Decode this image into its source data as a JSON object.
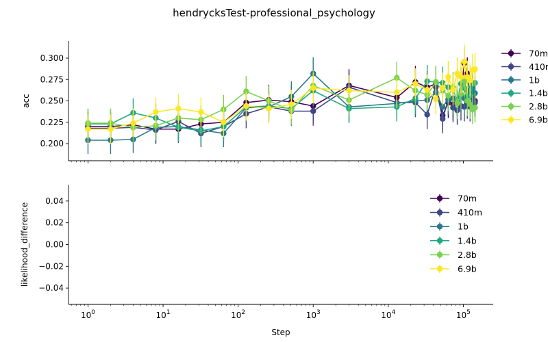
{
  "figure_title": "hendrycksTest-professional_psychology",
  "chart_data": [
    {
      "type": "line",
      "title": "",
      "xlabel": "",
      "ylabel": "acc",
      "xscale": "log",
      "xlim": [
        0.55,
        250000
      ],
      "ylim": [
        0.18,
        0.32
      ],
      "yticks": [
        0.2,
        0.225,
        0.25,
        0.275,
        0.3
      ],
      "ytick_labels": [
        "0.200",
        "0.225",
        "0.250",
        "0.275",
        "0.300"
      ],
      "xticks": [
        1,
        10,
        100,
        1000,
        10000,
        100000
      ],
      "xtick_labels": [
        "10^0",
        "10^1",
        "10^2",
        "10^3",
        "10^4",
        "10^5"
      ],
      "legend_position": "right, outside plot",
      "error_bars": true,
      "x": [
        1,
        2,
        4,
        8,
        16,
        32,
        64,
        128,
        256,
        512,
        1000,
        3000,
        13000,
        23000,
        33000,
        43000,
        53000,
        63000,
        73000,
        83000,
        93000,
        103000,
        113000,
        123000,
        133000,
        143000
      ],
      "series": [
        {
          "name": "70m",
          "color": "#440154",
          "values": [
            0.22,
            0.22,
            0.222,
            0.217,
            0.217,
            0.223,
            0.225,
            0.248,
            0.251,
            0.249,
            0.244,
            0.268,
            0.254,
            0.272,
            0.266,
            0.27,
            0.233,
            0.248,
            0.246,
            0.25,
            0.257,
            0.294,
            0.282,
            0.256,
            0.269,
            0.25
          ],
          "errors": [
            0.017,
            0.017,
            0.017,
            0.017,
            0.016,
            0.016,
            0.016,
            0.017,
            0.018,
            0.018,
            0.018,
            0.019,
            0.019,
            0.019,
            0.019,
            0.019,
            0.018,
            0.018,
            0.018,
            0.018,
            0.018,
            0.019,
            0.019,
            0.018,
            0.019,
            0.018
          ]
        },
        {
          "name": "410m",
          "color": "#414487",
          "values": [
            0.218,
            0.218,
            0.219,
            0.216,
            0.226,
            0.212,
            0.22,
            0.235,
            0.243,
            0.238,
            0.238,
            0.266,
            0.248,
            0.248,
            0.234,
            0.266,
            0.229,
            0.251,
            0.242,
            0.239,
            0.244,
            0.243,
            0.246,
            0.243,
            0.254,
            0.248
          ],
          "errors": [
            0.016,
            0.016,
            0.016,
            0.016,
            0.017,
            0.016,
            0.016,
            0.017,
            0.017,
            0.017,
            0.017,
            0.018,
            0.017,
            0.017,
            0.017,
            0.018,
            0.017,
            0.017,
            0.017,
            0.017,
            0.017,
            0.017,
            0.017,
            0.017,
            0.018,
            0.017
          ]
        },
        {
          "name": "1b",
          "color": "#2a788e",
          "values": [
            0.204,
            0.204,
            0.205,
            0.219,
            0.22,
            0.216,
            0.212,
            0.242,
            0.243,
            0.255,
            0.282,
            0.243,
            0.247,
            0.25,
            0.251,
            0.26,
            0.243,
            0.252,
            0.253,
            0.249,
            0.255,
            0.253,
            0.262,
            0.259,
            0.266,
            0.259
          ],
          "errors": [
            0.016,
            0.016,
            0.016,
            0.017,
            0.017,
            0.016,
            0.016,
            0.017,
            0.017,
            0.018,
            0.019,
            0.017,
            0.017,
            0.017,
            0.018,
            0.018,
            0.017,
            0.018,
            0.018,
            0.017,
            0.018,
            0.018,
            0.018,
            0.018,
            0.019,
            0.018
          ]
        },
        {
          "name": "1.4b",
          "color": "#22a884",
          "values": [
            0.223,
            0.223,
            0.236,
            0.23,
            0.219,
            0.215,
            0.22,
            0.243,
            0.244,
            0.241,
            0.262,
            0.241,
            0.243,
            0.253,
            0.273,
            0.272,
            0.271,
            0.266,
            0.263,
            0.25,
            0.27,
            0.265,
            0.276,
            0.256,
            0.27,
            0.271
          ],
          "errors": [
            0.017,
            0.017,
            0.017,
            0.017,
            0.017,
            0.016,
            0.017,
            0.017,
            0.017,
            0.017,
            0.018,
            0.017,
            0.017,
            0.018,
            0.019,
            0.019,
            0.019,
            0.018,
            0.018,
            0.018,
            0.019,
            0.018,
            0.019,
            0.018,
            0.019,
            0.019
          ]
        },
        {
          "name": "2.8b",
          "color": "#7ad151",
          "values": [
            0.224,
            0.224,
            0.219,
            0.221,
            0.23,
            0.228,
            0.24,
            0.261,
            0.25,
            0.239,
            0.268,
            0.251,
            0.277,
            0.262,
            0.257,
            0.272,
            0.262,
            0.256,
            0.266,
            0.247,
            0.258,
            0.273,
            0.25,
            0.246,
            0.24,
            0.242
          ],
          "errors": [
            0.017,
            0.017,
            0.017,
            0.017,
            0.017,
            0.017,
            0.017,
            0.018,
            0.018,
            0.017,
            0.018,
            0.018,
            0.019,
            0.018,
            0.018,
            0.019,
            0.018,
            0.018,
            0.018,
            0.018,
            0.018,
            0.019,
            0.018,
            0.017,
            0.017,
            0.017
          ]
        },
        {
          "name": "6.9b",
          "color": "#fde725",
          "values": [
            0.217,
            0.217,
            0.224,
            0.237,
            0.241,
            0.237,
            0.225,
            0.244,
            0.241,
            0.246,
            0.265,
            0.262,
            0.26,
            0.27,
            0.263,
            0.252,
            0.265,
            0.278,
            0.263,
            0.282,
            0.278,
            0.296,
            0.278,
            0.274,
            0.286,
            0.287
          ],
          "errors": [
            0.017,
            0.017,
            0.017,
            0.017,
            0.017,
            0.017,
            0.017,
            0.017,
            0.017,
            0.017,
            0.018,
            0.018,
            0.018,
            0.018,
            0.018,
            0.018,
            0.018,
            0.019,
            0.018,
            0.019,
            0.019,
            0.02,
            0.019,
            0.019,
            0.019,
            0.019
          ]
        }
      ]
    },
    {
      "type": "line",
      "title": "",
      "xlabel": "Step",
      "ylabel": "likelihood_difference",
      "xscale": "log",
      "xlim": [
        0.55,
        250000
      ],
      "ylim": [
        -0.055,
        0.055
      ],
      "yticks": [
        -0.04,
        -0.02,
        0.0,
        0.02,
        0.04
      ],
      "ytick_labels": [
        "−0.04",
        "−0.02",
        "0.00",
        "0.02",
        "0.04"
      ],
      "xticks": [
        1,
        10,
        100,
        1000,
        10000,
        100000
      ],
      "xtick_labels": [
        "10^0",
        "10^1",
        "10^2",
        "10^3",
        "10^4",
        "10^5"
      ],
      "legend_position": "upper right, inside plot",
      "series": [
        {
          "name": "70m",
          "color": "#440154",
          "values": []
        },
        {
          "name": "410m",
          "color": "#414487",
          "values": []
        },
        {
          "name": "1b",
          "color": "#2a788e",
          "values": []
        },
        {
          "name": "1.4b",
          "color": "#22a884",
          "values": []
        },
        {
          "name": "2.8b",
          "color": "#7ad151",
          "values": []
        },
        {
          "name": "6.9b",
          "color": "#fde725",
          "values": []
        }
      ]
    }
  ]
}
